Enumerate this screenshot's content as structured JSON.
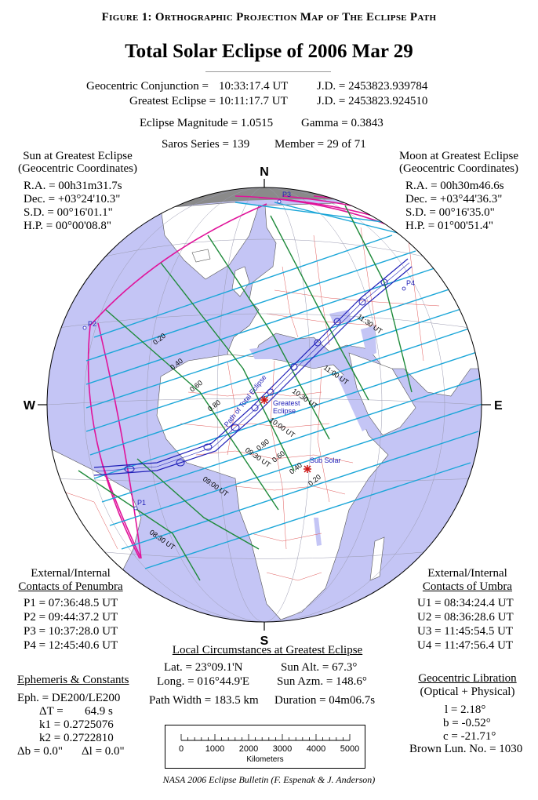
{
  "header": {
    "figure_title": "Figure 1: Orthographic Projection Map of The Eclipse Path",
    "main_title": "Total Solar Eclipse of  2006 Mar 29"
  },
  "circumstances": {
    "conjunction_label": "Geocentric Conjunction =",
    "conjunction_time": "10:33:17.4 UT",
    "conjunction_jd": "J.D. =  2453823.939784",
    "greatest_label": "Greatest Eclipse =",
    "greatest_time": "10:11:17.7 UT",
    "greatest_jd": "J.D. =  2453823.924510",
    "magnitude": "Eclipse Magnitude =  1.0515",
    "gamma": "Gamma =  0.3843",
    "saros": "Saros Series = 139",
    "member": "Member = 29 of 71"
  },
  "sun": {
    "title": "Sun at Greatest Eclipse",
    "subtitle": "(Geocentric Coordinates)",
    "ra": "R.A. =  00h31m31.7s",
    "dec": "Dec. = +03°24'10.3\"",
    "sd": "S.D. =  00°16'01.1\"",
    "hp": "H.P. =  00°00'08.8\""
  },
  "moon": {
    "title": "Moon at Greatest Eclipse",
    "subtitle": "(Geocentric Coordinates)",
    "ra": "R.A. =  00h30m46.6s",
    "dec": "Dec. = +03°44'36.3\"",
    "sd": "S.D. =  00°16'35.0\"",
    "hp": "H.P. =  01°00'51.4\""
  },
  "compass": {
    "n": "N",
    "s": "S",
    "w": "W",
    "e": "E"
  },
  "map_labels": {
    "p1": "P1",
    "p2": "P2",
    "p3": "P3",
    "p4": "P4",
    "greatest_eclipse_1": "Greatest",
    "greatest_eclipse_2": "Eclipse",
    "sub_solar": "Sub Solar",
    "path_label": "Path of Total Eclipse",
    "mag_020": "0.20",
    "mag_040": "0.40",
    "mag_060": "0.60",
    "mag_080": "0.80",
    "mag_080b": "0.80",
    "mag_060b": "0.60",
    "mag_040b": "0.40",
    "mag_020b": "0.20",
    "t_0830": "08:30 UT",
    "t_0900": "09:00 UT",
    "t_0930": "09:30 UT",
    "t_1000": "10:00 UT",
    "t_1030": "10:30 UT",
    "t_1100": "11:00 UT",
    "t_1130": "11:30 UT"
  },
  "penumbra": {
    "title1": "External/Internal",
    "title2": "Contacts of Penumbra",
    "p1": "P1 = 07:36:48.5 UT",
    "p2": "P2 = 09:44:37.2 UT",
    "p3": "P3 = 10:37:28.0 UT",
    "p4": "P4 = 12:45:40.6 UT"
  },
  "umbra": {
    "title1": "External/Internal",
    "title2": "Contacts of Umbra",
    "u1": "U1 = 08:34:24.4 UT",
    "u2": "U2 = 08:36:28.6 UT",
    "u3": "U3 = 11:45:54.5 UT",
    "u4": "U4 = 11:47:56.4 UT"
  },
  "local": {
    "title": "Local Circumstances at Greatest Eclipse",
    "lat": "Lat. =   23°09.1'N",
    "long": "Long. = 016°44.9'E",
    "sun_alt": "Sun Alt. =   67.3°",
    "sun_azm": "Sun Azm. = 148.6°",
    "path_width": "Path Width = 183.5 km",
    "duration": "Duration =   04m06.7s"
  },
  "ephemeris": {
    "title": "Ephemeris & Constants",
    "eph": "Eph. = DE200/LE200",
    "dt_label": "ΔT =",
    "dt_value": "64.9 s",
    "k1": "k1 = 0.2725076",
    "k2": "k2 = 0.2722810",
    "db": "Δb =   0.0\"",
    "dl": "Δl =   0.0\""
  },
  "libration": {
    "title": "Geocentric Libration",
    "subtitle": "(Optical + Physical)",
    "l": "l =    2.18°",
    "b": "b =  -0.52°",
    "c": "c = -21.71°",
    "brown": "Brown Lun. No. = 1030"
  },
  "scale_bar": {
    "ticks": [
      "0",
      "1000",
      "2000",
      "3000",
      "4000",
      "5000"
    ],
    "unit": "Kilometers"
  },
  "footer": {
    "credit": "NASA 2006 Eclipse Bulletin (F. Espenak & J. Anderson)"
  },
  "colors": {
    "ocean": "#c4c5f5",
    "land": "#ffffff",
    "night": "#8a8a8a",
    "penumbra_limit": "#e0139a",
    "time_lines": "#1aa6d8",
    "magnitude_lines": "#1e8a3a",
    "path": "#2020b8",
    "borders": "#e05a5a"
  }
}
